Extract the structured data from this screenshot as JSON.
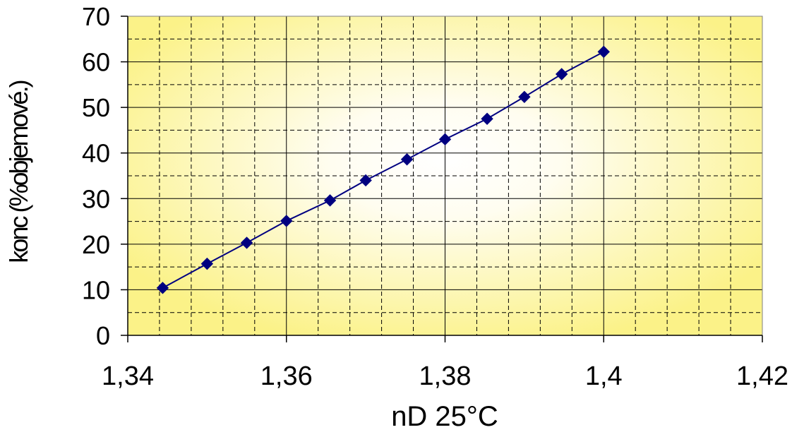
{
  "chart_data": {
    "type": "line",
    "title": "",
    "xlabel": "nD 25°C",
    "ylabel": "konc (%objemové.)",
    "xlim": [
      1.34,
      1.42
    ],
    "ylim": [
      0,
      70
    ],
    "x_ticks": [
      "1,34",
      "1,36",
      "1,38",
      "1,4",
      "1,42"
    ],
    "x_tick_values": [
      1.34,
      1.36,
      1.38,
      1.4,
      1.42
    ],
    "y_ticks": [
      "0",
      "10",
      "20",
      "30",
      "40",
      "50",
      "60",
      "70"
    ],
    "y_tick_values": [
      0,
      10,
      20,
      30,
      40,
      50,
      60,
      70
    ],
    "x_minor_grid_step": 0.004,
    "y_minor_grid_step": 5,
    "grid": true,
    "legend": "none",
    "series": [
      {
        "marker": "diamond",
        "x": [
          1.3444,
          1.35,
          1.355,
          1.36,
          1.3655,
          1.37,
          1.3752,
          1.38,
          1.3853,
          1.39,
          1.3947,
          1.4
        ],
        "y": [
          10.4,
          15.7,
          20.3,
          25.1,
          29.6,
          34.0,
          38.6,
          43.0,
          47.5,
          52.3,
          57.3,
          62.2
        ]
      }
    ]
  },
  "colors": {
    "series_line": "#000080",
    "series_marker": "#000080",
    "plot_bg_center": "#ffffff",
    "plot_bg_edge": "#fbf288",
    "grid_major": "#000000",
    "axis": "#000000"
  }
}
